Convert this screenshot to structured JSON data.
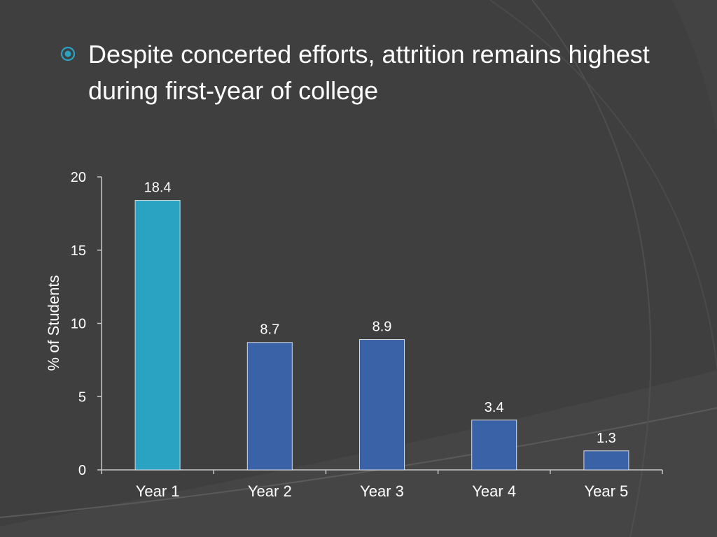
{
  "slide": {
    "bullet_text": "Despite concerted efforts, attrition remains highest during first-year of college",
    "bullet_icon": "target-bullet-icon",
    "background_color": "#3f3f3f",
    "accent_color": "#2aa3c3"
  },
  "chart_data": {
    "type": "bar",
    "categories": [
      "Year 1",
      "Year 2",
      "Year 3",
      "Year 4",
      "Year 5"
    ],
    "values": [
      18.4,
      8.7,
      8.9,
      3.4,
      1.3
    ],
    "data_labels": [
      "18.4",
      "8.7",
      "8.9",
      "3.4",
      "1.3"
    ],
    "bar_colors": [
      "#2aa3c3",
      "#3a62a6",
      "#3a62a6",
      "#3a62a6",
      "#3a62a6"
    ],
    "title": "",
    "xlabel": "",
    "ylabel": "% of Students",
    "ylim": [
      0,
      20
    ],
    "yticks": [
      0,
      5,
      10,
      15,
      20
    ],
    "grid": false,
    "legend": "none"
  }
}
